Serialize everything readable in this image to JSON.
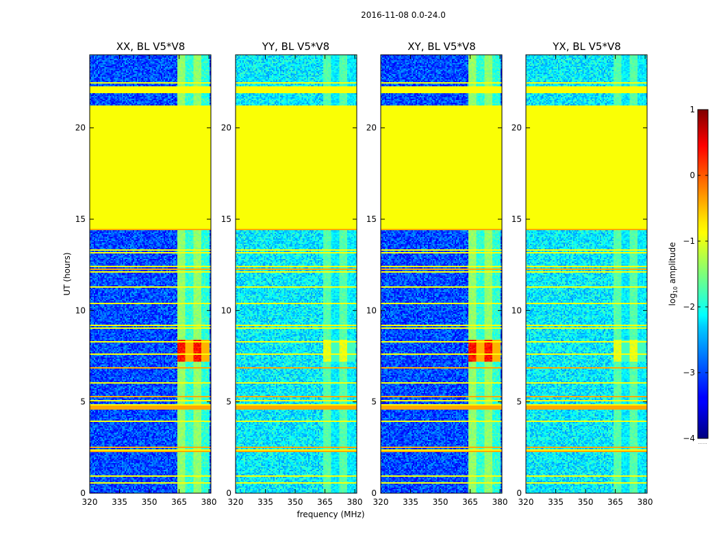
{
  "chart_data": {
    "type": "heatmap",
    "suptitle": "2016-11-08 0.0-24.0",
    "xlabel": "frequency (MHz)",
    "ylabel": "UT (hours)",
    "xlim": [
      320,
      381
    ],
    "ylim": [
      0,
      24
    ],
    "x_ticks": [
      320,
      335,
      350,
      365,
      380
    ],
    "y_ticks": [
      0,
      5,
      10,
      15,
      20
    ],
    "panels": [
      {
        "title": "XX, BL V5*V8",
        "background_level": -3.0,
        "band_level": -1.4,
        "burst_level": 0.3,
        "burst_ut": [
          7.2,
          8.4
        ]
      },
      {
        "title": "YY, BL V5*V8",
        "background_level": -2.2,
        "band_level": -1.7,
        "burst_level": -1.0,
        "burst_ut": [
          7.2,
          8.4
        ]
      },
      {
        "title": "XY, BL V5*V8",
        "background_level": -3.0,
        "band_level": -1.4,
        "burst_level": 0.3,
        "burst_ut": [
          7.2,
          8.4
        ]
      },
      {
        "title": "YX, BL V5*V8",
        "background_level": -2.2,
        "band_level": -1.7,
        "burst_level": -1.0,
        "burst_ut": [
          7.2,
          8.4
        ]
      }
    ],
    "flagged_ut_range": [
      14.5,
      21.2
    ],
    "flagged_level": -0.9,
    "rfi_band_mhz": [
      364,
      380
    ],
    "colorbar": {
      "label_prefix": "log",
      "label_subscript": "10",
      "label_suffix": " amplitude",
      "min": -4,
      "max": 1,
      "ticks": [
        "−4",
        "−3",
        "−2",
        "−1",
        "0",
        "1"
      ],
      "bottom_marker": "......",
      "colormap": "jet"
    }
  },
  "colors": {
    "flag_green": "#99ff55",
    "rfi_line_orange": "#ff9933"
  }
}
